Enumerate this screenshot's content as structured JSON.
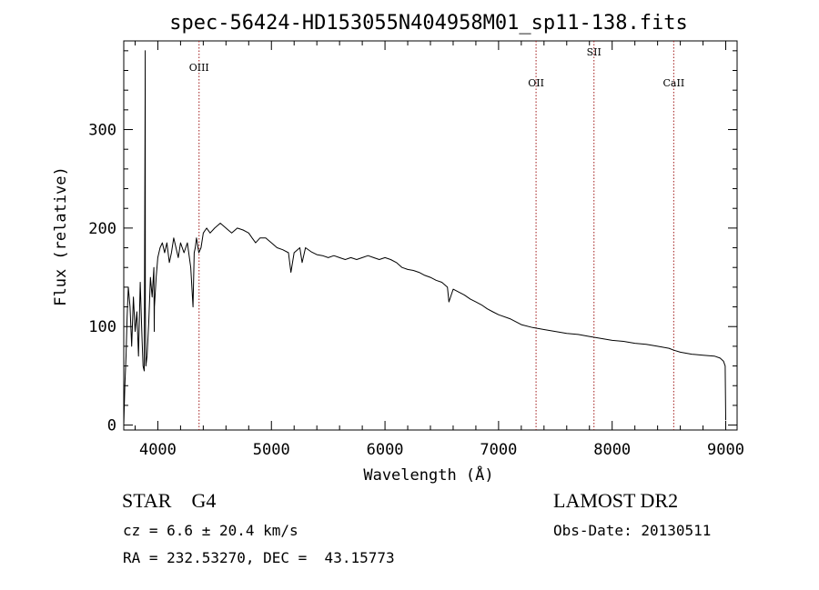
{
  "chart_data": {
    "type": "line",
    "title": "spec-56424-HD153055N404958M01_sp11-138.fits",
    "xlabel": "Wavelength (Å)",
    "ylabel": "Flux (relative)",
    "xlim": [
      3700,
      9100
    ],
    "ylim": [
      -5,
      390
    ],
    "x_ticks": [
      4000,
      5000,
      6000,
      7000,
      8000,
      9000
    ],
    "y_ticks": [
      0,
      100,
      200,
      300
    ],
    "grid": false,
    "series": [
      {
        "x": [
          3700,
          3710,
          3720,
          3730,
          3740,
          3755,
          3770,
          3785,
          3800,
          3815,
          3830,
          3845,
          3860,
          3870,
          3880,
          3888,
          3889,
          3890,
          3895,
          3905,
          3920,
          3935,
          3950,
          3965,
          3968,
          3970,
          3985,
          4000,
          4020,
          4040,
          4060,
          4080,
          4101,
          4120,
          4140,
          4160,
          4180,
          4200,
          4230,
          4260,
          4290,
          4310,
          4320,
          4330,
          4340,
          4361,
          4380,
          4400,
          4430,
          4460,
          4500,
          4550,
          4600,
          4650,
          4700,
          4750,
          4800,
          4830,
          4861,
          4900,
          4950,
          5000,
          5050,
          5100,
          5150,
          5172,
          5200,
          5250,
          5270,
          5300,
          5350,
          5400,
          5450,
          5500,
          5550,
          5600,
          5650,
          5700,
          5750,
          5800,
          5850,
          5900,
          5950,
          6000,
          6050,
          6100,
          6150,
          6200,
          6250,
          6300,
          6350,
          6400,
          6450,
          6500,
          6550,
          6563,
          6600,
          6650,
          6700,
          6750,
          6800,
          6850,
          6900,
          6950,
          7000,
          7100,
          7200,
          7300,
          7400,
          7500,
          7600,
          7700,
          7800,
          7900,
          8000,
          8100,
          8200,
          8300,
          8400,
          8500,
          8542,
          8600,
          8700,
          8800,
          8900,
          8950,
          8980,
          8995,
          9000
        ],
        "y": [
          0,
          40,
          70,
          110,
          140,
          120,
          80,
          130,
          95,
          115,
          70,
          145,
          90,
          60,
          55,
          335,
          380,
          120,
          60,
          70,
          105,
          150,
          130,
          160,
          95,
          120,
          150,
          170,
          180,
          185,
          175,
          185,
          165,
          175,
          190,
          180,
          170,
          185,
          175,
          185,
          160,
          120,
          175,
          180,
          190,
          175,
          180,
          195,
          200,
          195,
          200,
          205,
          200,
          195,
          200,
          198,
          195,
          190,
          185,
          190,
          190,
          185,
          180,
          178,
          175,
          155,
          175,
          180,
          165,
          180,
          176,
          173,
          172,
          170,
          172,
          170,
          168,
          170,
          168,
          170,
          172,
          170,
          168,
          170,
          168,
          165,
          160,
          158,
          157,
          155,
          152,
          150,
          147,
          145,
          140,
          125,
          138,
          135,
          132,
          128,
          125,
          122,
          118,
          115,
          112,
          108,
          102,
          99,
          97,
          95,
          93,
          92,
          90,
          88,
          86,
          85,
          83,
          82,
          80,
          78,
          76,
          74,
          72,
          71,
          70,
          68,
          65,
          60,
          5
        ]
      }
    ],
    "annotations": [
      {
        "label": "OIII",
        "x": 4363
      },
      {
        "label": "OII",
        "x": 7330
      },
      {
        "label": "SII",
        "x": 7840
      },
      {
        "label": "CaII",
        "x": 8542
      }
    ]
  },
  "info": {
    "class_line": "STAR    G4",
    "survey": "LAMOST DR2",
    "cz_line": "cz = 6.6 ± 20.4 km/s",
    "obs_date_line": "Obs-Date: 20130511",
    "coords_line": "RA = 232.53270, DEC =  43.15773"
  }
}
